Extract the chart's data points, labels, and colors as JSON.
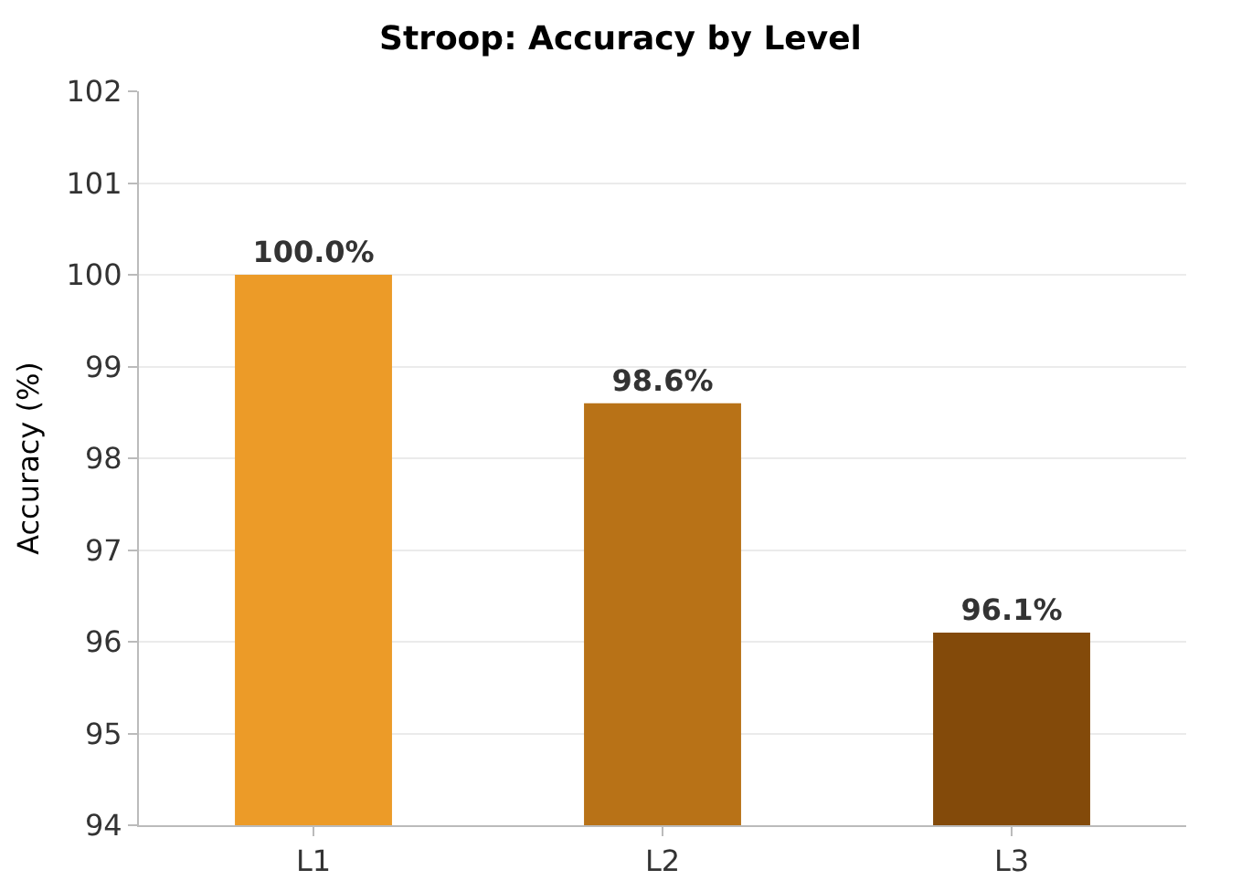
{
  "chart_data": {
    "type": "bar",
    "title": "Stroop: Accuracy by Level",
    "ylabel": "Accuracy (%)",
    "categories": [
      "L1",
      "L2",
      "L3"
    ],
    "values": [
      100,
      98.6,
      96.1
    ],
    "colors": [
      "#ec9b28",
      "#b87217",
      "#834a0a"
    ],
    "value_labels": [
      "100.0%",
      "98.6%",
      "96.1%"
    ],
    "ylim": [
      94,
      102
    ],
    "yticks": [
      94,
      95,
      96,
      97,
      98,
      99,
      100,
      101,
      102
    ],
    "grid": "y"
  }
}
